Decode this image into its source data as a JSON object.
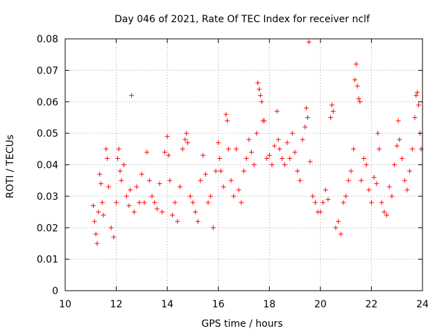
{
  "chart_data": {
    "type": "scatter",
    "title": "Day 046 of 2021, Rate Of TEC Index for receiver nclf",
    "xlabel": "GPS time / hours",
    "ylabel": "ROTI / TECUs",
    "xlim": [
      10,
      24
    ],
    "ylim": [
      0,
      0.08
    ],
    "x_ticks": [
      10,
      12,
      14,
      16,
      18,
      20,
      22,
      24
    ],
    "x_tick_labels": [
      "10",
      "12",
      "14",
      "16",
      "18",
      "20",
      "22",
      "24"
    ],
    "y_ticks": [
      0,
      0.01,
      0.02,
      0.03,
      0.04,
      0.05,
      0.06,
      0.07,
      0.08
    ],
    "y_tick_labels": [
      "0",
      "0.01",
      "0.02",
      "0.03",
      "0.04",
      "0.05",
      "0.06",
      "0.07",
      "0.08"
    ],
    "grid": true,
    "marker": "+",
    "color": "#ff0000",
    "series": [
      {
        "name": "ROTI",
        "points": [
          [
            11.1,
            0.027
          ],
          [
            11.15,
            0.022
          ],
          [
            11.2,
            0.018
          ],
          [
            11.25,
            0.015
          ],
          [
            11.3,
            0.025
          ],
          [
            11.35,
            0.037
          ],
          [
            11.4,
            0.034
          ],
          [
            11.45,
            0.028
          ],
          [
            11.5,
            0.024
          ],
          [
            11.6,
            0.045
          ],
          [
            11.65,
            0.042
          ],
          [
            11.7,
            0.033
          ],
          [
            11.8,
            0.02
          ],
          [
            11.9,
            0.017
          ],
          [
            12.0,
            0.028
          ],
          [
            12.05,
            0.042
          ],
          [
            12.1,
            0.045
          ],
          [
            12.15,
            0.038
          ],
          [
            12.2,
            0.035
          ],
          [
            12.3,
            0.04
          ],
          [
            12.4,
            0.03
          ],
          [
            12.5,
            0.027
          ],
          [
            12.55,
            0.032
          ],
          [
            12.6,
            0.062
          ],
          [
            12.7,
            0.025
          ],
          [
            12.8,
            0.033
          ],
          [
            12.9,
            0.028
          ],
          [
            13.0,
            0.037
          ],
          [
            13.1,
            0.028
          ],
          [
            13.2,
            0.044
          ],
          [
            13.3,
            0.035
          ],
          [
            13.4,
            0.03
          ],
          [
            13.5,
            0.028
          ],
          [
            13.6,
            0.026
          ],
          [
            13.7,
            0.034
          ],
          [
            13.8,
            0.025
          ],
          [
            13.9,
            0.044
          ],
          [
            14.0,
            0.049
          ],
          [
            14.05,
            0.043
          ],
          [
            14.1,
            0.035
          ],
          [
            14.2,
            0.024
          ],
          [
            14.3,
            0.028
          ],
          [
            14.4,
            0.022
          ],
          [
            14.5,
            0.033
          ],
          [
            14.6,
            0.045
          ],
          [
            14.7,
            0.048
          ],
          [
            14.75,
            0.05
          ],
          [
            14.8,
            0.047
          ],
          [
            14.9,
            0.03
          ],
          [
            15.0,
            0.028
          ],
          [
            15.1,
            0.025
          ],
          [
            15.2,
            0.022
          ],
          [
            15.3,
            0.035
          ],
          [
            15.4,
            0.043
          ],
          [
            15.5,
            0.037
          ],
          [
            15.6,
            0.028
          ],
          [
            15.7,
            0.03
          ],
          [
            15.8,
            0.02
          ],
          [
            15.9,
            0.038
          ],
          [
            16.0,
            0.047
          ],
          [
            16.05,
            0.042
          ],
          [
            16.1,
            0.038
          ],
          [
            16.2,
            0.033
          ],
          [
            16.3,
            0.056
          ],
          [
            16.35,
            0.054
          ],
          [
            16.4,
            0.045
          ],
          [
            16.5,
            0.035
          ],
          [
            16.6,
            0.03
          ],
          [
            16.7,
            0.045
          ],
          [
            16.8,
            0.032
          ],
          [
            16.9,
            0.028
          ],
          [
            17.0,
            0.038
          ],
          [
            17.1,
            0.042
          ],
          [
            17.2,
            0.048
          ],
          [
            17.3,
            0.044
          ],
          [
            17.4,
            0.04
          ],
          [
            17.5,
            0.05
          ],
          [
            17.55,
            0.066
          ],
          [
            17.6,
            0.064
          ],
          [
            17.65,
            0.062
          ],
          [
            17.7,
            0.06
          ],
          [
            17.75,
            0.054
          ],
          [
            17.8,
            0.054
          ],
          [
            17.9,
            0.042
          ],
          [
            18.0,
            0.043
          ],
          [
            18.1,
            0.04
          ],
          [
            18.2,
            0.046
          ],
          [
            18.3,
            0.057
          ],
          [
            18.35,
            0.048
          ],
          [
            18.4,
            0.045
          ],
          [
            18.5,
            0.042
          ],
          [
            18.6,
            0.04
          ],
          [
            18.7,
            0.047
          ],
          [
            18.8,
            0.042
          ],
          [
            18.9,
            0.05
          ],
          [
            19.0,
            0.044
          ],
          [
            19.1,
            0.038
          ],
          [
            19.2,
            0.035
          ],
          [
            19.3,
            0.048
          ],
          [
            19.4,
            0.052
          ],
          [
            19.45,
            0.058
          ],
          [
            19.5,
            0.055
          ],
          [
            19.55,
            0.079
          ],
          [
            19.6,
            0.041
          ],
          [
            19.7,
            0.03
          ],
          [
            19.8,
            0.028
          ],
          [
            19.9,
            0.025
          ],
          [
            20.0,
            0.025
          ],
          [
            20.1,
            0.028
          ],
          [
            20.2,
            0.032
          ],
          [
            20.3,
            0.029
          ],
          [
            20.4,
            0.055
          ],
          [
            20.45,
            0.059
          ],
          [
            20.5,
            0.057
          ],
          [
            20.6,
            0.02
          ],
          [
            20.7,
            0.022
          ],
          [
            20.8,
            0.018
          ],
          [
            20.9,
            0.028
          ],
          [
            21.0,
            0.03
          ],
          [
            21.1,
            0.035
          ],
          [
            21.2,
            0.038
          ],
          [
            21.3,
            0.045
          ],
          [
            21.35,
            0.067
          ],
          [
            21.4,
            0.072
          ],
          [
            21.45,
            0.065
          ],
          [
            21.5,
            0.061
          ],
          [
            21.55,
            0.06
          ],
          [
            21.6,
            0.035
          ],
          [
            21.7,
            0.042
          ],
          [
            21.8,
            0.04
          ],
          [
            21.9,
            0.032
          ],
          [
            22.0,
            0.028
          ],
          [
            22.1,
            0.036
          ],
          [
            22.2,
            0.034
          ],
          [
            22.25,
            0.05
          ],
          [
            22.3,
            0.045
          ],
          [
            22.4,
            0.028
          ],
          [
            22.5,
            0.025
          ],
          [
            22.6,
            0.024
          ],
          [
            22.7,
            0.033
          ],
          [
            22.8,
            0.03
          ],
          [
            22.9,
            0.04
          ],
          [
            23.0,
            0.046
          ],
          [
            23.05,
            0.054
          ],
          [
            23.1,
            0.048
          ],
          [
            23.2,
            0.042
          ],
          [
            23.3,
            0.035
          ],
          [
            23.4,
            0.032
          ],
          [
            23.5,
            0.038
          ],
          [
            23.6,
            0.045
          ],
          [
            23.7,
            0.055
          ],
          [
            23.75,
            0.062
          ],
          [
            23.8,
            0.063
          ],
          [
            23.85,
            0.059
          ],
          [
            23.9,
            0.05
          ],
          [
            23.95,
            0.045
          ]
        ]
      }
    ]
  }
}
